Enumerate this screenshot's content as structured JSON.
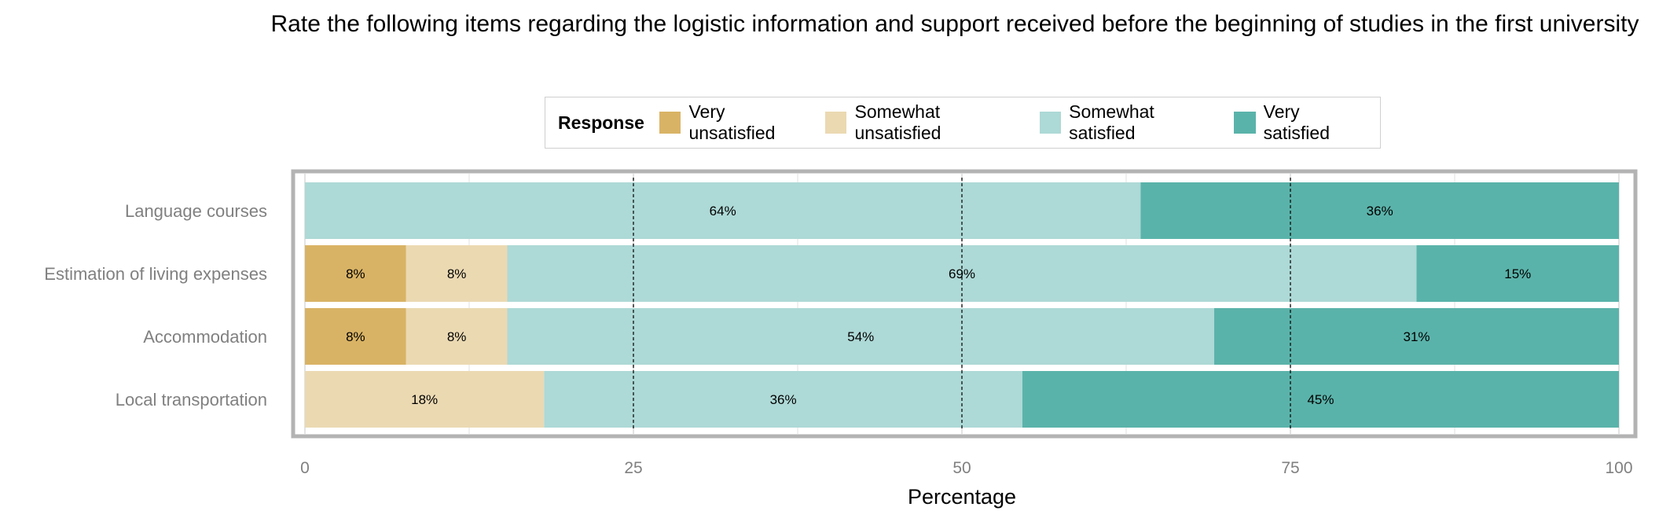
{
  "chart_data": {
    "type": "bar",
    "orientation": "horizontal",
    "stacked": true,
    "title": "Rate the following items regarding the logistic information and support received before the beginning of studies in the first university",
    "xlabel": "Percentage",
    "ylabel": "",
    "xlim": [
      0,
      100
    ],
    "xticks": [
      "0",
      "25",
      "50",
      "75",
      "100"
    ],
    "xtick_values": [
      0,
      25,
      50,
      75,
      100
    ],
    "grid": true,
    "legend": {
      "title": "Response",
      "placement": "top"
    },
    "categories": [
      "Language courses",
      "Estimation of living expenses",
      "Accommodation",
      "Local transportation"
    ],
    "series": [
      {
        "name": "Very unsatisfied",
        "color": "#D9B365",
        "values": [
          0,
          7.7,
          7.7,
          0
        ],
        "labels": [
          "",
          "8%",
          "8%",
          ""
        ]
      },
      {
        "name": "Somewhat unsatisfied",
        "color": "#EBD9B2",
        "values": [
          0,
          7.7,
          7.7,
          18.2
        ],
        "labels": [
          "",
          "8%",
          "8%",
          "18%"
        ]
      },
      {
        "name": "Somewhat satisfied",
        "color": "#ADD9D6",
        "values": [
          63.6,
          69.2,
          53.8,
          36.4
        ],
        "labels": [
          "64%",
          "69%",
          "54%",
          "36%"
        ]
      },
      {
        "name": "Very satisfied",
        "color": "#5AB3AA",
        "values": [
          36.4,
          15.4,
          30.8,
          45.4
        ],
        "labels": [
          "36%",
          "15%",
          "31%",
          "45%"
        ]
      }
    ]
  }
}
